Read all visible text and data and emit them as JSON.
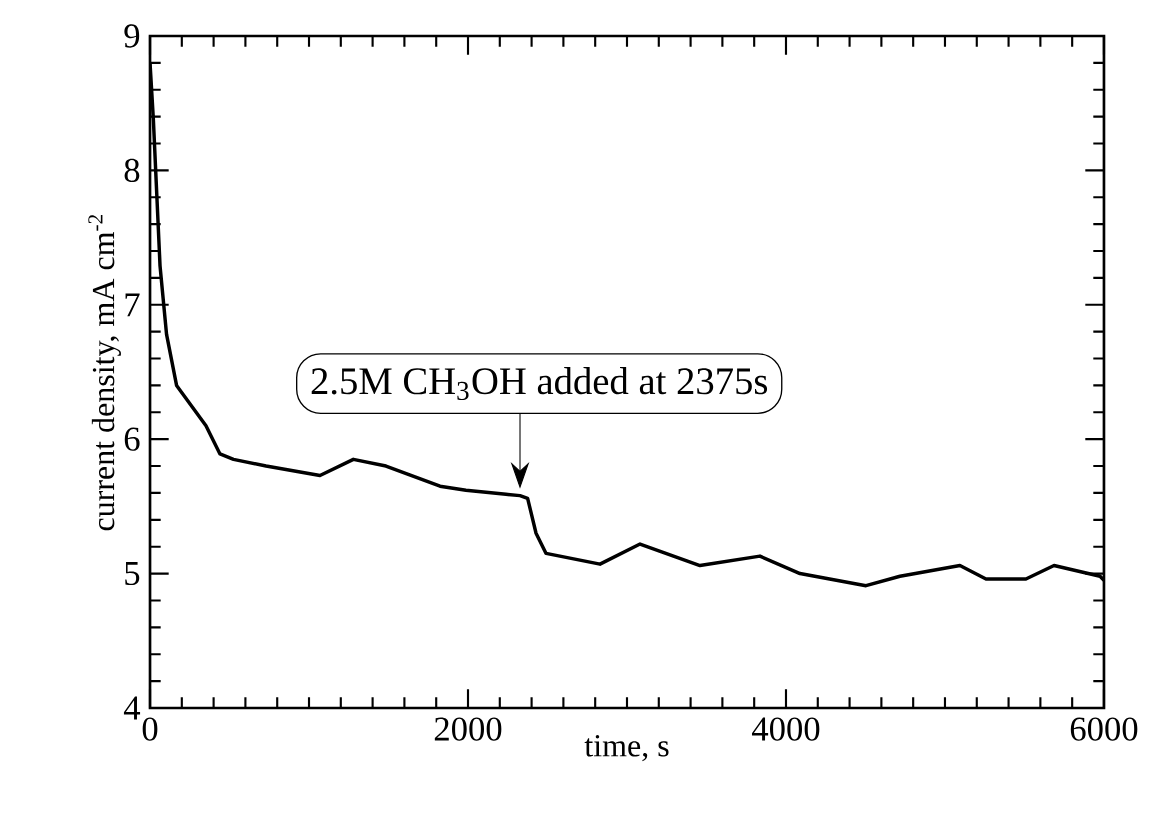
{
  "chart_data": {
    "type": "line",
    "xlabel": "time, s",
    "ylabel": "current density, mA cm$^{-2}$",
    "x": [
      0,
      21,
      63,
      104,
      167,
      352,
      440,
      525,
      730,
      1069,
      1279,
      1484,
      1824,
      1987,
      2239,
      2327,
      2375,
      2428,
      2491,
      2830,
      3082,
      3459,
      3836,
      4088,
      4503,
      4717,
      5094,
      5258,
      5509,
      5686,
      5975,
      6000
    ],
    "values": [
      8.8,
      8.38,
      7.29,
      6.78,
      6.4,
      6.1,
      5.89,
      5.85,
      5.8,
      5.73,
      5.85,
      5.8,
      5.65,
      5.62,
      5.59,
      5.58,
      5.56,
      5.3,
      5.15,
      5.07,
      5.22,
      5.06,
      5.13,
      5.0,
      4.91,
      4.98,
      5.06,
      4.96,
      4.96,
      5.06,
      4.98,
      4.95
    ],
    "color": "#000000",
    "xlim": [
      0,
      6000
    ],
    "ylim": [
      4,
      9
    ],
    "xticks": [
      0,
      2000,
      4000,
      6000
    ],
    "yticks": [
      4,
      5,
      6,
      7,
      8,
      9
    ],
    "grid": false,
    "marker": "none",
    "line_style": "solid",
    "annotations": [
      "2.5M CH$_{3}$OH added at 2375s"
    ]
  }
}
